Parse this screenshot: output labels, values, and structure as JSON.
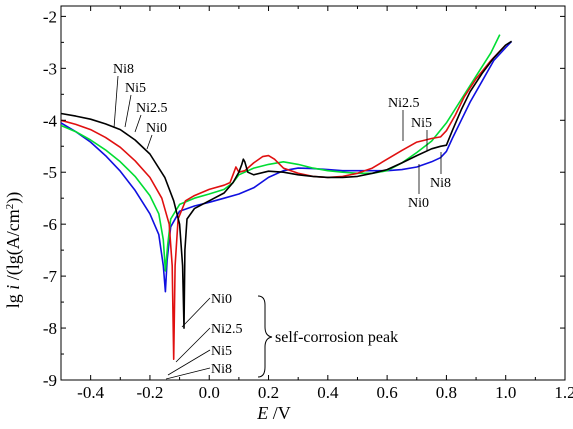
{
  "chart_data": {
    "type": "line",
    "xlabel_var": "E",
    "xlabel_unit": " /V",
    "ylabel_var": "i",
    "ylabel_prefix": "lg ",
    "ylabel_unit": " /(lg(A/cm",
    "ylabel_sup": "2",
    "ylabel_close": "))",
    "xlim": [
      -0.5,
      1.2
    ],
    "ylim": [
      -9,
      -1.8
    ],
    "x_ticks": [
      -0.4,
      -0.2,
      0.0,
      0.2,
      0.4,
      0.6,
      0.8,
      1.0,
      1.2
    ],
    "x_tick_labels": [
      "-0.4",
      "-0.2",
      "0.0",
      "0.2",
      "0.4",
      "0.6",
      "0.8",
      "1.0",
      "1.2"
    ],
    "y_ticks": [
      -2,
      -3,
      -4,
      -5,
      -6,
      -7,
      -8,
      -9
    ],
    "y_tick_labels": [
      "-2",
      "-3",
      "-4",
      "-5",
      "-6",
      "-7",
      "-8",
      "-9"
    ],
    "grid": false,
    "series": [
      {
        "name": "Ni0",
        "color": "#1010e0",
        "points": [
          [
            -0.5,
            -4.05
          ],
          [
            -0.45,
            -4.22
          ],
          [
            -0.4,
            -4.42
          ],
          [
            -0.35,
            -4.68
          ],
          [
            -0.3,
            -4.98
          ],
          [
            -0.25,
            -5.35
          ],
          [
            -0.2,
            -5.8
          ],
          [
            -0.17,
            -6.2
          ],
          [
            -0.155,
            -6.8
          ],
          [
            -0.148,
            -7.3
          ],
          [
            -0.142,
            -6.7
          ],
          [
            -0.13,
            -6.05
          ],
          [
            -0.1,
            -5.75
          ],
          [
            -0.05,
            -5.65
          ],
          [
            0.0,
            -5.58
          ],
          [
            0.05,
            -5.5
          ],
          [
            0.1,
            -5.42
          ],
          [
            0.15,
            -5.3
          ],
          [
            0.2,
            -5.1
          ],
          [
            0.25,
            -4.97
          ],
          [
            0.3,
            -4.92
          ],
          [
            0.35,
            -4.93
          ],
          [
            0.4,
            -4.95
          ],
          [
            0.45,
            -4.97
          ],
          [
            0.5,
            -4.97
          ],
          [
            0.55,
            -4.97
          ],
          [
            0.6,
            -4.97
          ],
          [
            0.65,
            -4.95
          ],
          [
            0.7,
            -4.9
          ],
          [
            0.75,
            -4.8
          ],
          [
            0.78,
            -4.72
          ],
          [
            0.8,
            -4.6
          ],
          [
            0.82,
            -4.35
          ],
          [
            0.85,
            -4.0
          ],
          [
            0.88,
            -3.65
          ],
          [
            0.92,
            -3.25
          ],
          [
            0.96,
            -2.85
          ],
          [
            1.0,
            -2.6
          ],
          [
            1.02,
            -2.48
          ]
        ]
      },
      {
        "name": "Ni2.5",
        "color": "#00dd33",
        "points": [
          [
            -0.5,
            -4.1
          ],
          [
            -0.45,
            -4.22
          ],
          [
            -0.4,
            -4.38
          ],
          [
            -0.35,
            -4.57
          ],
          [
            -0.3,
            -4.8
          ],
          [
            -0.25,
            -5.08
          ],
          [
            -0.2,
            -5.45
          ],
          [
            -0.17,
            -5.8
          ],
          [
            -0.155,
            -6.3
          ],
          [
            -0.148,
            -6.9
          ],
          [
            -0.14,
            -6.4
          ],
          [
            -0.13,
            -5.9
          ],
          [
            -0.1,
            -5.62
          ],
          [
            -0.05,
            -5.5
          ],
          [
            0.0,
            -5.42
          ],
          [
            0.05,
            -5.33
          ],
          [
            0.08,
            -5.2
          ],
          [
            0.1,
            -5.05
          ],
          [
            0.15,
            -4.92
          ],
          [
            0.2,
            -4.85
          ],
          [
            0.25,
            -4.8
          ],
          [
            0.3,
            -4.85
          ],
          [
            0.35,
            -4.92
          ],
          [
            0.4,
            -4.97
          ],
          [
            0.45,
            -5.0
          ],
          [
            0.5,
            -5.02
          ],
          [
            0.55,
            -5.02
          ],
          [
            0.6,
            -4.97
          ],
          [
            0.65,
            -4.82
          ],
          [
            0.7,
            -4.62
          ],
          [
            0.75,
            -4.4
          ],
          [
            0.8,
            -4.05
          ],
          [
            0.85,
            -3.6
          ],
          [
            0.9,
            -3.15
          ],
          [
            0.95,
            -2.7
          ],
          [
            0.98,
            -2.35
          ]
        ]
      },
      {
        "name": "Ni5",
        "color": "#e01010",
        "points": [
          [
            -0.5,
            -4.0
          ],
          [
            -0.45,
            -4.08
          ],
          [
            -0.4,
            -4.18
          ],
          [
            -0.35,
            -4.33
          ],
          [
            -0.3,
            -4.52
          ],
          [
            -0.25,
            -4.78
          ],
          [
            -0.2,
            -5.1
          ],
          [
            -0.16,
            -5.5
          ],
          [
            -0.135,
            -6.0
          ],
          [
            -0.125,
            -6.8
          ],
          [
            -0.12,
            -8.6
          ],
          [
            -0.115,
            -6.8
          ],
          [
            -0.105,
            -5.9
          ],
          [
            -0.08,
            -5.55
          ],
          [
            -0.05,
            -5.45
          ],
          [
            0.0,
            -5.33
          ],
          [
            0.05,
            -5.25
          ],
          [
            0.07,
            -5.2
          ],
          [
            0.08,
            -5.05
          ],
          [
            0.09,
            -4.9
          ],
          [
            0.1,
            -5.0
          ],
          [
            0.12,
            -4.97
          ],
          [
            0.15,
            -4.82
          ],
          [
            0.18,
            -4.7
          ],
          [
            0.2,
            -4.68
          ],
          [
            0.22,
            -4.75
          ],
          [
            0.25,
            -4.92
          ],
          [
            0.3,
            -5.02
          ],
          [
            0.35,
            -5.08
          ],
          [
            0.4,
            -5.1
          ],
          [
            0.45,
            -5.08
          ],
          [
            0.5,
            -5.02
          ],
          [
            0.55,
            -4.92
          ],
          [
            0.6,
            -4.75
          ],
          [
            0.65,
            -4.58
          ],
          [
            0.7,
            -4.42
          ],
          [
            0.75,
            -4.35
          ],
          [
            0.78,
            -4.32
          ],
          [
            0.8,
            -4.2
          ],
          [
            0.83,
            -3.9
          ],
          [
            0.86,
            -3.55
          ],
          [
            0.9,
            -3.2
          ],
          [
            0.95,
            -2.85
          ],
          [
            1.0,
            -2.55
          ]
        ]
      },
      {
        "name": "Ni8",
        "color": "#000000",
        "points": [
          [
            -0.5,
            -3.87
          ],
          [
            -0.45,
            -3.92
          ],
          [
            -0.4,
            -3.98
          ],
          [
            -0.35,
            -4.07
          ],
          [
            -0.3,
            -4.18
          ],
          [
            -0.25,
            -4.38
          ],
          [
            -0.2,
            -4.65
          ],
          [
            -0.15,
            -5.1
          ],
          [
            -0.12,
            -5.55
          ],
          [
            -0.1,
            -6.0
          ],
          [
            -0.09,
            -6.8
          ],
          [
            -0.085,
            -8.0
          ],
          [
            -0.082,
            -6.5
          ],
          [
            -0.075,
            -5.9
          ],
          [
            -0.05,
            -5.7
          ],
          [
            0.0,
            -5.55
          ],
          [
            0.05,
            -5.4
          ],
          [
            0.08,
            -5.2
          ],
          [
            0.1,
            -5.0
          ],
          [
            0.11,
            -4.85
          ],
          [
            0.115,
            -4.75
          ],
          [
            0.12,
            -4.8
          ],
          [
            0.13,
            -5.0
          ],
          [
            0.15,
            -5.05
          ],
          [
            0.2,
            -4.98
          ],
          [
            0.25,
            -5.0
          ],
          [
            0.3,
            -5.05
          ],
          [
            0.35,
            -5.08
          ],
          [
            0.4,
            -5.1
          ],
          [
            0.45,
            -5.1
          ],
          [
            0.5,
            -5.08
          ],
          [
            0.55,
            -5.02
          ],
          [
            0.6,
            -4.95
          ],
          [
            0.65,
            -4.82
          ],
          [
            0.7,
            -4.68
          ],
          [
            0.75,
            -4.55
          ],
          [
            0.78,
            -4.5
          ],
          [
            0.8,
            -4.48
          ],
          [
            0.82,
            -4.2
          ],
          [
            0.85,
            -3.8
          ],
          [
            0.88,
            -3.45
          ],
          [
            0.92,
            -3.1
          ],
          [
            0.96,
            -2.8
          ],
          [
            1.0,
            -2.55
          ],
          [
            1.02,
            -2.48
          ]
        ]
      }
    ],
    "annotations_left": [
      "Ni8",
      "Ni5",
      "Ni2.5",
      "Ni0"
    ],
    "annotations_right_top": [
      "Ni2.5",
      "Ni5"
    ],
    "annotations_right_bottom": [
      "Ni8",
      "Ni0"
    ],
    "annotations_bottom": [
      "Ni0",
      "Ni2.5",
      "Ni5",
      "Ni8"
    ],
    "bracket_label": "self-corrosion peak"
  }
}
